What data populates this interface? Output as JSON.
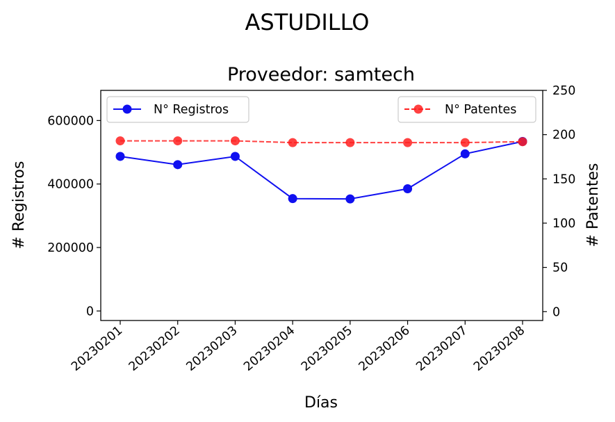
{
  "suptitle": "ASTUDILLO",
  "chart_data": {
    "type": "line",
    "title": "Proveedor: samtech",
    "xlabel": "Días",
    "ylabel_left": "# Registros",
    "ylabel_right": "# Patentes",
    "categories": [
      "20230201",
      "20230202",
      "20230203",
      "20230204",
      "20230205",
      "20230206",
      "20230207",
      "20230208"
    ],
    "y_left_lim": [
      -30000,
      695000
    ],
    "y_right_lim": [
      -10,
      250
    ],
    "y_left_ticks": [
      0,
      200000,
      400000,
      600000
    ],
    "y_right_ticks": [
      0,
      50,
      100,
      150,
      200,
      250
    ],
    "grid": false,
    "series": [
      {
        "name": "N° Registros",
        "axis": "left",
        "color": "#1010f0",
        "linestyle": "solid",
        "marker": "circle",
        "values": [
          487000,
          461000,
          487000,
          354000,
          353000,
          385000,
          495000,
          534000
        ],
        "legend_position": "upper-left"
      },
      {
        "name": "N° Patentes",
        "axis": "right",
        "color": "#ff2020",
        "linestyle": "dashed",
        "marker": "circle",
        "values": [
          193,
          193,
          193,
          191,
          191,
          191,
          191,
          192
        ],
        "legend_position": "upper-right"
      }
    ]
  }
}
